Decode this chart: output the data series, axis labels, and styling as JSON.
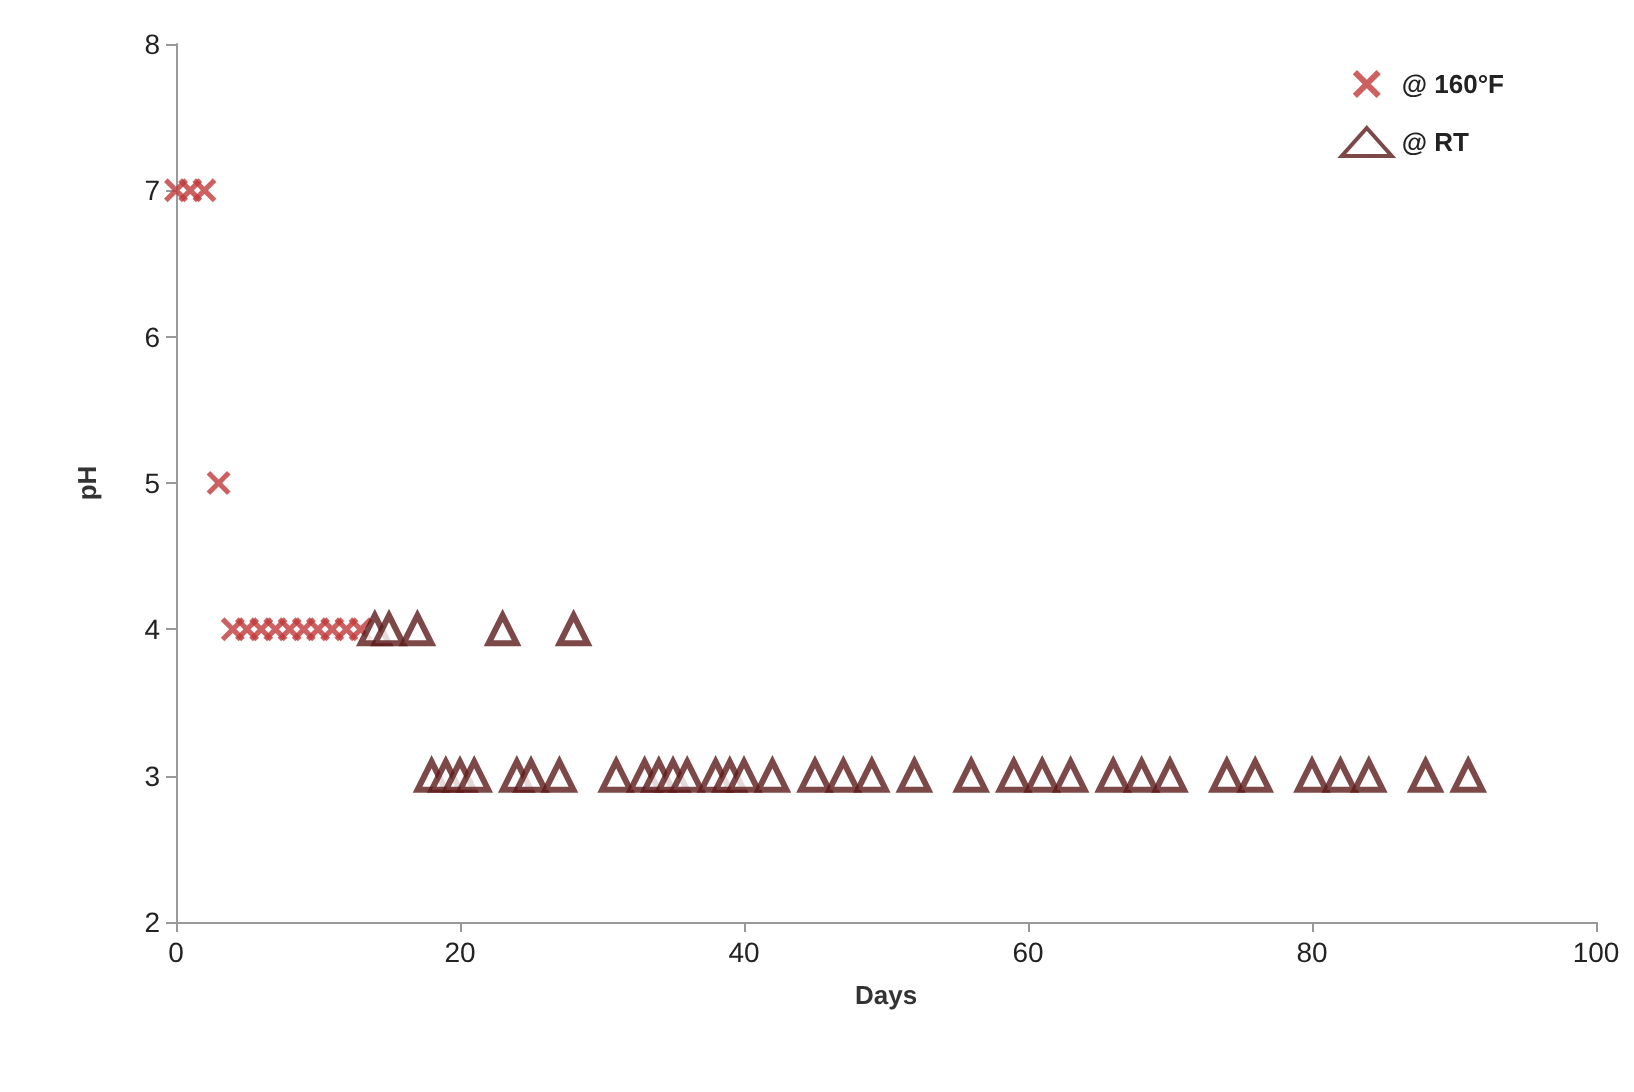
{
  "chart_data": {
    "type": "scatter",
    "xlabel": "Days",
    "ylabel": "pH",
    "xlim": [
      0,
      100
    ],
    "xticks": [
      0,
      20,
      40,
      60,
      80,
      100
    ],
    "ylim": [
      2,
      8
    ],
    "yticks": [
      2,
      3,
      4,
      5,
      6,
      7,
      8
    ],
    "grid": false,
    "legend": "top right",
    "series": [
      {
        "name": "@ 160°F",
        "color": "#c0393b",
        "marker": "cross",
        "x": [
          0,
          1,
          2,
          3,
          4,
          5,
          6,
          7,
          8,
          9,
          10,
          11,
          12,
          13
        ],
        "values": [
          7,
          7,
          7,
          5,
          4,
          4,
          4,
          4,
          4,
          4,
          4,
          4,
          4,
          4
        ]
      },
      {
        "name": "@ RT",
        "color": "#5c1a1a",
        "marker": "triangle",
        "x": [
          14,
          15,
          17,
          23,
          28,
          18,
          19,
          20,
          21,
          24,
          25,
          27,
          31,
          33,
          34,
          35,
          36,
          38,
          39,
          40,
          42,
          45,
          47,
          49,
          52,
          56,
          59,
          61,
          63,
          66,
          68,
          70,
          74,
          76,
          80,
          82,
          84,
          88,
          91
        ],
        "values": [
          4,
          4,
          4,
          4,
          4,
          3,
          3,
          3,
          3,
          3,
          3,
          3,
          3,
          3,
          3,
          3,
          3,
          3,
          3,
          3,
          3,
          3,
          3,
          3,
          3,
          3,
          3,
          3,
          3,
          3,
          3,
          3,
          3,
          3,
          3,
          3,
          3,
          3,
          3
        ]
      }
    ]
  }
}
